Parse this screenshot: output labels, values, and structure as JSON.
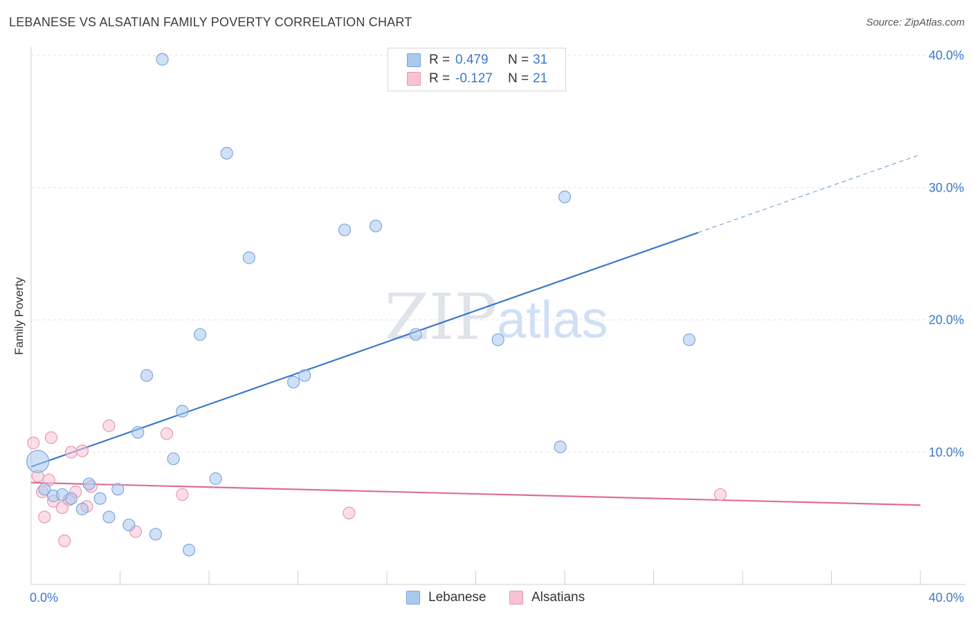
{
  "title": "LEBANESE VS ALSATIAN FAMILY POVERTY CORRELATION CHART",
  "source": "Source: ZipAtlas.com",
  "watermark": {
    "zip": "ZIP",
    "atlas": "atlas"
  },
  "legend_top": [
    {
      "r_label": "R =",
      "r_value": "0.479",
      "n_label": "N =",
      "n_value": "31",
      "color": "#aac8f0",
      "border": "#7ba6dd"
    },
    {
      "r_label": "R =",
      "r_value": "-0.127",
      "n_label": "N =",
      "n_value": "21",
      "color": "#f7c3d3",
      "border": "#e997b1"
    }
  ],
  "legend_bottom": [
    {
      "label": "Lebanese",
      "color": "#aac8f0",
      "border": "#7ba6dd"
    },
    {
      "label": "Alsatians",
      "color": "#f7c3d3",
      "border": "#e997b1"
    }
  ],
  "chart_data": {
    "type": "scatter",
    "title": "LEBANESE VS ALSATIAN FAMILY POVERTY CORRELATION CHART",
    "xlabel": "",
    "ylabel": "Family Poverty",
    "xlim": [
      0,
      40
    ],
    "ylim": [
      0,
      40
    ],
    "x_tick_labels": [
      {
        "value": 0,
        "label": "0.0%"
      },
      {
        "value": 40,
        "label": "40.0%"
      }
    ],
    "y_tick_labels": [
      {
        "value": 10,
        "label": "10.0%"
      },
      {
        "value": 20,
        "label": "20.0%"
      },
      {
        "value": 30,
        "label": "30.0%"
      },
      {
        "value": 40,
        "label": "40.0%"
      }
    ],
    "grid": "horizontal dashed",
    "colors": {
      "lebanese": "#3a78c9",
      "alsatians": "#e06c98",
      "tick_text": "#3a78c9"
    },
    "series": [
      {
        "name": "Lebanese",
        "fill": "#aac8f0",
        "stroke": "#7ba6dd",
        "points": [
          [
            0.3,
            9.3
          ],
          [
            0.6,
            7.2
          ],
          [
            1.0,
            6.7
          ],
          [
            1.4,
            6.8
          ],
          [
            1.8,
            6.5
          ],
          [
            2.3,
            5.7
          ],
          [
            2.6,
            7.6
          ],
          [
            3.1,
            6.5
          ],
          [
            3.5,
            5.1
          ],
          [
            3.9,
            7.2
          ],
          [
            4.4,
            4.5
          ],
          [
            4.8,
            11.5
          ],
          [
            5.2,
            15.8
          ],
          [
            5.6,
            3.8
          ],
          [
            5.9,
            39.7
          ],
          [
            6.4,
            9.5
          ],
          [
            6.8,
            13.1
          ],
          [
            7.1,
            2.6
          ],
          [
            7.6,
            18.9
          ],
          [
            8.3,
            8.0
          ],
          [
            8.8,
            32.6
          ],
          [
            9.8,
            24.7
          ],
          [
            11.8,
            15.3
          ],
          [
            12.3,
            15.8
          ],
          [
            14.1,
            26.8
          ],
          [
            15.5,
            27.1
          ],
          [
            17.3,
            18.9
          ],
          [
            21.0,
            18.5
          ],
          [
            23.8,
            10.4
          ],
          [
            24.0,
            29.3
          ],
          [
            29.6,
            18.5
          ]
        ],
        "bubble_sizes": {
          "0": "large"
        },
        "trend": {
          "x0": 0,
          "y0": 8.9,
          "x1": 30.0,
          "y1": 26.6,
          "dashed_to_x": 40.0,
          "dashed_to_y": 32.5
        }
      },
      {
        "name": "Alsatians",
        "fill": "#f7c3d3",
        "stroke": "#e997b1",
        "points": [
          [
            0.1,
            10.7
          ],
          [
            0.3,
            8.2
          ],
          [
            0.5,
            7.0
          ],
          [
            0.6,
            5.1
          ],
          [
            0.8,
            7.9
          ],
          [
            0.9,
            11.1
          ],
          [
            1.0,
            6.3
          ],
          [
            1.4,
            5.8
          ],
          [
            1.5,
            3.3
          ],
          [
            1.7,
            6.4
          ],
          [
            1.8,
            10.0
          ],
          [
            2.0,
            7.0
          ],
          [
            2.3,
            10.1
          ],
          [
            2.5,
            5.9
          ],
          [
            2.7,
            7.4
          ],
          [
            3.5,
            12.0
          ],
          [
            4.7,
            4.0
          ],
          [
            6.1,
            11.4
          ],
          [
            6.8,
            6.8
          ],
          [
            14.3,
            5.4
          ],
          [
            31.0,
            6.8
          ]
        ],
        "trend": {
          "x0": 0,
          "y0": 7.7,
          "x1": 40.0,
          "y1": 6.0
        }
      }
    ]
  }
}
